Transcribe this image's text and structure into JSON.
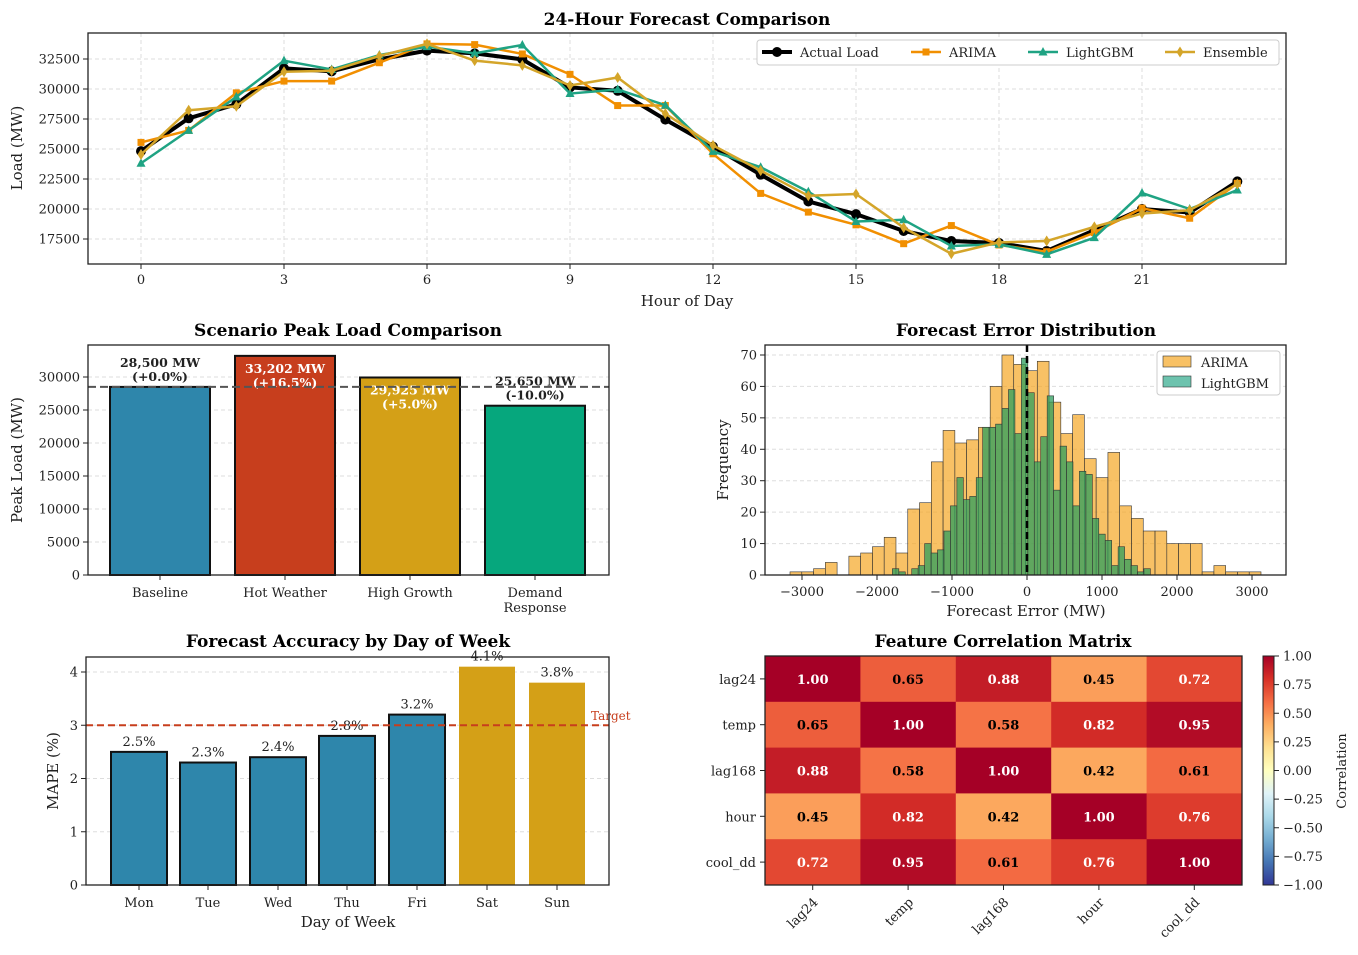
{
  "chart_data": [
    {
      "type": "line",
      "title": "24-Hour Forecast Comparison",
      "xlabel": "Hour of Day",
      "ylabel": "Load (MW)",
      "x": [
        0,
        1,
        2,
        3,
        4,
        5,
        6,
        7,
        8,
        9,
        10,
        11,
        12,
        13,
        14,
        15,
        16,
        17,
        18,
        19,
        20,
        21,
        22,
        23
      ],
      "xticks": [
        0,
        3,
        6,
        9,
        12,
        15,
        18,
        21
      ],
      "yticks": [
        17500,
        20000,
        22500,
        25000,
        27500,
        30000,
        32500
      ],
      "xlim": [
        -1.1,
        24.1
      ],
      "ylim": [
        15400,
        34700
      ],
      "grid": true,
      "legend": "top-right",
      "series": [
        {
          "name": "Actual Load",
          "color": "#000000",
          "marker": "circle",
          "values": [
            24820,
            27560,
            28730,
            31720,
            31470,
            32470,
            33200,
            32970,
            32470,
            30130,
            29850,
            27450,
            25200,
            22860,
            20630,
            19570,
            18170,
            17330,
            17170,
            16500,
            18230,
            20000,
            19710,
            22300
          ]
        },
        {
          "name": "ARIMA",
          "color": "#F18F01",
          "marker": "square",
          "values": [
            25550,
            26550,
            29680,
            30660,
            30660,
            32190,
            33760,
            33700,
            32920,
            31220,
            28620,
            28620,
            24600,
            21300,
            19740,
            18680,
            17110,
            18620,
            17000,
            16440,
            18030,
            20070,
            19230,
            22140
          ]
        },
        {
          "name": "LightGBM",
          "color": "#1FA383",
          "marker": "triangle",
          "values": [
            23810,
            26550,
            29340,
            32360,
            31630,
            32830,
            33530,
            32970,
            33670,
            29620,
            29960,
            28650,
            24800,
            23480,
            21440,
            18960,
            19100,
            16920,
            17060,
            16220,
            17610,
            21330,
            20000,
            21580
          ]
        },
        {
          "name": "Ensemble",
          "color": "#D4A52A",
          "marker": "diamond",
          "values": [
            24540,
            28230,
            28560,
            31440,
            31520,
            32750,
            33760,
            32360,
            31970,
            30290,
            30960,
            27950,
            25300,
            23200,
            21100,
            21250,
            18450,
            16270,
            17220,
            17330,
            18510,
            19620,
            19900,
            22080
          ]
        }
      ]
    },
    {
      "type": "bar",
      "title": "Scenario Peak Load Comparison",
      "ylabel": "Peak Load (MW)",
      "categories": [
        [
          "Baseline"
        ],
        [
          "Hot Weather"
        ],
        [
          "High Growth"
        ],
        [
          "Demand",
          "Response"
        ]
      ],
      "values": [
        28500,
        33202,
        29925,
        25650
      ],
      "value_labels": [
        "28,500 MW",
        "33,202 MW",
        "29,925 MW",
        "25,650 MW"
      ],
      "pct_labels": [
        "(+0.0%)",
        "(+16.5%)",
        "(+5.0%)",
        "(-10.0%)"
      ],
      "colors": [
        "#2E86AB",
        "#C73E1D",
        "#D4A017",
        "#06A77D"
      ],
      "reference_line": 28500,
      "yticks": [
        0,
        5000,
        10000,
        15000,
        20000,
        25000,
        30000
      ],
      "ylim": [
        0,
        34700
      ],
      "grid": true
    },
    {
      "type": "histogram",
      "title": "Forecast Error Distribution",
      "xlabel": "Forecast Error (MW)",
      "ylabel": "Frequency",
      "xticks": [
        -3000,
        -2000,
        -1000,
        0,
        1000,
        2000,
        3000
      ],
      "yticks": [
        0,
        10,
        20,
        30,
        40,
        50,
        60,
        70
      ],
      "xlim": [
        -3500,
        3500
      ],
      "ylim": [
        0,
        73
      ],
      "reference_line": 0,
      "legend": "top-right",
      "series": [
        {
          "name": "ARIMA",
          "color": "#F5A623",
          "bin_start": -3160,
          "bin_width": 157,
          "counts": [
            1,
            1,
            2,
            4,
            0,
            6,
            7,
            9,
            12,
            7,
            21,
            23,
            36,
            46,
            42,
            43,
            47,
            60,
            70,
            67,
            65,
            68,
            55,
            45,
            51,
            37,
            31,
            39,
            22,
            18,
            14,
            14,
            10,
            10,
            10,
            1,
            3,
            1,
            1,
            1
          ]
        },
        {
          "name": "LightGBM",
          "color": "#1FA383",
          "bin_start": -1795,
          "bin_width": 86,
          "counts": [
            2,
            1,
            0,
            2,
            3,
            10,
            7,
            8,
            14,
            22,
            31,
            24,
            25,
            31,
            47,
            47,
            48,
            53,
            59,
            45,
            69,
            58,
            36,
            44,
            57,
            27,
            41,
            36,
            22,
            33,
            32,
            18,
            13,
            11,
            3,
            9,
            5,
            3,
            1,
            2
          ]
        }
      ]
    },
    {
      "type": "bar",
      "title": "Forecast Accuracy by Day of Week",
      "xlabel": "Day of Week",
      "ylabel": "MAPE (%)",
      "categories": [
        "Mon",
        "Tue",
        "Wed",
        "Thu",
        "Fri",
        "Sat",
        "Sun"
      ],
      "values": [
        2.5,
        2.3,
        2.4,
        2.8,
        3.2,
        4.1,
        3.8
      ],
      "value_labels": [
        "2.5%",
        "2.3%",
        "2.4%",
        "2.8%",
        "3.2%",
        "4.1%",
        "3.8%"
      ],
      "colors": [
        "#2E86AB",
        "#2E86AB",
        "#2E86AB",
        "#2E86AB",
        "#2E86AB",
        "#D4A017",
        "#D4A017"
      ],
      "target": 3,
      "target_label": "Target",
      "target_color": "#C73E1D",
      "yticks": [
        0,
        1,
        2,
        3,
        4
      ],
      "ylim": [
        0,
        4.28
      ],
      "grid": true
    },
    {
      "type": "heatmap",
      "title": "Feature Correlation Matrix",
      "rows": [
        "lag24",
        "temp",
        "lag168",
        "hour",
        "cool_dd"
      ],
      "cols": [
        "lag24",
        "temp",
        "lag168",
        "hour",
        "cool_dd"
      ],
      "values": [
        [
          1.0,
          0.65,
          0.88,
          0.45,
          0.72
        ],
        [
          0.65,
          1.0,
          0.58,
          0.82,
          0.95
        ],
        [
          0.88,
          0.58,
          1.0,
          0.42,
          0.61
        ],
        [
          0.45,
          0.82,
          0.42,
          1.0,
          0.76
        ],
        [
          0.72,
          0.95,
          0.61,
          0.76,
          1.0
        ]
      ],
      "colormap": "RdYlBu_r",
      "vlim": [
        -1,
        1
      ],
      "colorbar_label": "Correlation",
      "colorbar_ticks": [
        "1.00",
        "0.75",
        "0.50",
        "0.25",
        "0.00",
        "−0.25",
        "−0.50",
        "−0.75",
        "−1.00"
      ]
    }
  ]
}
